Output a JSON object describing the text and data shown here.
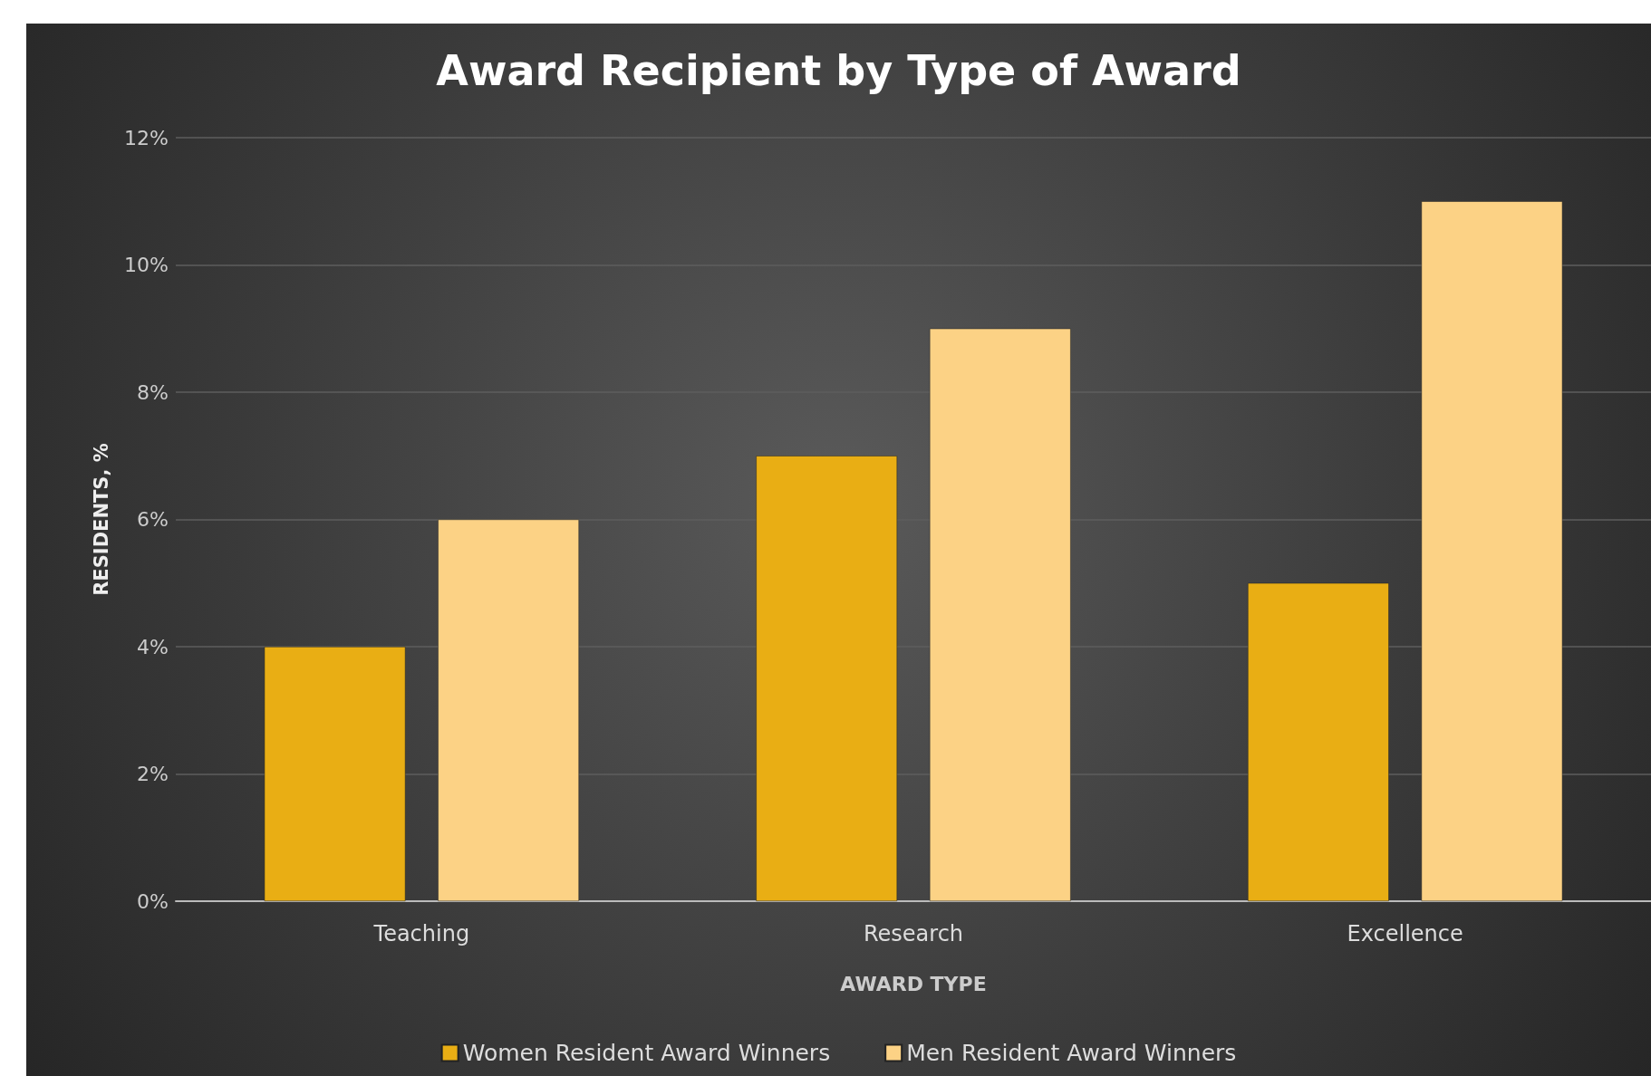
{
  "chart_data": {
    "type": "bar",
    "title": "Award Recipient by Type of Award",
    "xlabel": "AWARD TYPE",
    "ylabel": "RESIDENTS, %",
    "categories": [
      "Teaching",
      "Research",
      "Excellence"
    ],
    "series": [
      {
        "name": "Women Resident Award Winners",
        "color": "#e9ae14",
        "values": [
          4,
          7,
          5
        ]
      },
      {
        "name": "Men Resident Award Winners",
        "color": "#fcd285",
        "values": [
          6,
          9,
          11
        ]
      }
    ],
    "ylim": [
      0,
      12
    ],
    "yticks": [
      {
        "value": 0,
        "label": "0%"
      },
      {
        "value": 2,
        "label": "2%"
      },
      {
        "value": 4,
        "label": "4%"
      },
      {
        "value": 6,
        "label": "6%"
      },
      {
        "value": 8,
        "label": "8%"
      },
      {
        "value": 10,
        "label": "10%"
      },
      {
        "value": 12,
        "label": "12%"
      }
    ],
    "grid": "y",
    "legend": "bottom"
  }
}
